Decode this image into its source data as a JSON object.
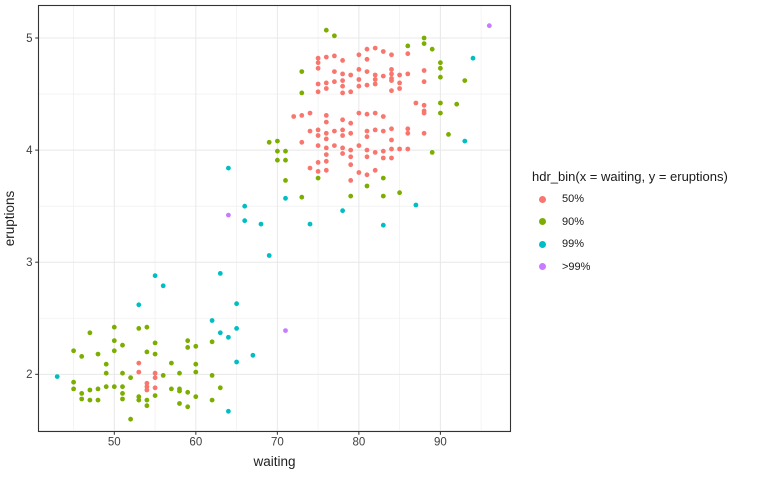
{
  "chart_data": {
    "type": "scatter",
    "title": "",
    "xlabel": "waiting",
    "ylabel": "eruptions",
    "xlim": [
      40.7,
      98.6
    ],
    "ylim": [
      1.49,
      5.29
    ],
    "x_ticks": [
      50,
      60,
      70,
      80,
      90
    ],
    "x_minor_gridlines": [
      45,
      55,
      65,
      75,
      85,
      95
    ],
    "y_ticks": [
      2,
      3,
      4,
      5
    ],
    "y_minor_gridlines": [
      1.5,
      2.5,
      3.5,
      4.5
    ],
    "grid": true,
    "panel_border_color": "#333333",
    "gridline_major_color": "#e8e8e8",
    "gridline_minor_color": "#f1f1f1",
    "legend": {
      "title": "hdr_bin(x = waiting, y = eruptions)",
      "position": "right",
      "items": [
        {
          "label": "50%",
          "color": "#F8766D"
        },
        {
          "label": "90%",
          "color": "#7CAE00"
        },
        {
          "label": "99%",
          "color": "#00BFC4"
        },
        {
          "label": ">99%",
          "color": "#C77CFF"
        }
      ]
    },
    "series": [
      {
        "name": "50%",
        "color": "#F8766D",
        "points": [
          [
            53,
            2.1
          ],
          [
            53,
            2.02
          ],
          [
            55,
            2.01
          ],
          [
            55,
            1.97
          ],
          [
            54,
            1.92
          ],
          [
            55,
            1.88
          ],
          [
            54,
            1.89
          ],
          [
            54,
            1.86
          ],
          [
            75,
            4.82
          ],
          [
            76,
            4.83
          ],
          [
            77,
            4.84
          ],
          [
            78,
            4.8
          ],
          [
            80,
            4.85
          ],
          [
            81,
            4.9
          ],
          [
            81,
            4.81
          ],
          [
            82,
            4.91
          ],
          [
            83,
            4.88
          ],
          [
            84,
            4.85
          ],
          [
            86,
            4.86
          ],
          [
            75,
            4.78
          ],
          [
            75,
            4.73
          ],
          [
            77,
            4.7
          ],
          [
            78,
            4.68
          ],
          [
            79,
            4.67
          ],
          [
            80,
            4.72
          ],
          [
            81,
            4.7
          ],
          [
            82,
            4.67
          ],
          [
            83,
            4.66
          ],
          [
            84,
            4.72
          ],
          [
            84,
            4.68
          ],
          [
            85,
            4.67
          ],
          [
            86,
            4.68
          ],
          [
            88,
            4.71
          ],
          [
            84,
            4.64
          ],
          [
            75,
            4.59
          ],
          [
            75,
            4.52
          ],
          [
            76,
            4.6
          ],
          [
            76,
            4.55
          ],
          [
            77,
            4.61
          ],
          [
            78,
            4.62
          ],
          [
            78,
            4.57
          ],
          [
            78,
            4.51
          ],
          [
            79,
            4.52
          ],
          [
            80,
            4.63
          ],
          [
            80,
            4.57
          ],
          [
            81,
            4.58
          ],
          [
            82,
            4.59
          ],
          [
            82,
            4.63
          ],
          [
            84,
            4.62
          ],
          [
            84,
            4.53
          ],
          [
            85,
            4.6
          ],
          [
            85,
            4.55
          ],
          [
            88,
            4.61
          ],
          [
            87,
            4.42
          ],
          [
            88,
            4.4
          ],
          [
            88,
            4.35
          ],
          [
            72,
            4.3
          ],
          [
            73,
            4.31
          ],
          [
            74,
            4.33
          ],
          [
            76,
            4.31
          ],
          [
            76,
            4.25
          ],
          [
            78,
            4.27
          ],
          [
            79,
            4.24
          ],
          [
            80,
            4.33
          ],
          [
            81,
            4.32
          ],
          [
            82,
            4.33
          ],
          [
            83,
            4.3
          ],
          [
            88,
            4.33
          ],
          [
            74,
            4.17
          ],
          [
            75,
            4.18
          ],
          [
            75,
            4.13
          ],
          [
            76,
            4.15
          ],
          [
            76,
            4.1
          ],
          [
            77,
            4.17
          ],
          [
            78,
            4.18
          ],
          [
            78,
            4.13
          ],
          [
            79,
            4.15
          ],
          [
            81,
            4.17
          ],
          [
            81,
            4.12
          ],
          [
            82,
            4.18
          ],
          [
            83,
            4.17
          ],
          [
            84,
            4.19
          ],
          [
            86,
            4.19
          ],
          [
            86,
            4.15
          ],
          [
            88,
            4.15
          ],
          [
            73,
            4.07
          ],
          [
            75,
            4.04
          ],
          [
            76,
            4.02
          ],
          [
            77,
            4.04
          ],
          [
            78,
            4.02
          ],
          [
            78,
            3.97
          ],
          [
            76,
            3.96
          ],
          [
            76,
            3.9
          ],
          [
            75,
            3.89
          ],
          [
            79,
            4.0
          ],
          [
            79,
            3.94
          ],
          [
            80,
            4.04
          ],
          [
            81,
            4.0
          ],
          [
            81,
            3.94
          ],
          [
            82,
            3.98
          ],
          [
            83,
            3.99
          ],
          [
            84,
            4.09
          ],
          [
            84,
            4.01
          ],
          [
            85,
            4.01
          ],
          [
            83,
            3.93
          ],
          [
            84,
            3.93
          ],
          [
            86,
            4.01
          ],
          [
            74,
            3.84
          ],
          [
            75,
            3.81
          ],
          [
            76,
            3.82
          ],
          [
            80,
            3.8
          ],
          [
            81,
            3.78
          ],
          [
            82,
            3.82
          ],
          [
            79,
            3.73
          ],
          [
            79,
            3.87
          ]
        ]
      },
      {
        "name": "90%",
        "color": "#7CAE00",
        "points": [
          [
            76,
            5.07
          ],
          [
            77,
            5.02
          ],
          [
            88,
            5.0
          ],
          [
            86,
            4.93
          ],
          [
            88,
            4.95
          ],
          [
            89,
            4.9
          ],
          [
            73,
            4.7
          ],
          [
            73,
            4.51
          ],
          [
            90,
            4.78
          ],
          [
            90,
            4.73
          ],
          [
            90,
            4.65
          ],
          [
            93,
            4.62
          ],
          [
            92,
            4.41
          ],
          [
            90,
            4.42
          ],
          [
            90,
            4.33
          ],
          [
            91,
            4.14
          ],
          [
            89,
            3.98
          ],
          [
            85,
            3.62
          ],
          [
            83,
            3.75
          ],
          [
            83,
            3.59
          ],
          [
            81,
            3.68
          ],
          [
            79,
            3.59
          ],
          [
            75,
            3.75
          ],
          [
            73,
            3.58
          ],
          [
            71,
            3.73
          ],
          [
            69,
            4.07
          ],
          [
            70,
            4.08
          ],
          [
            70,
            3.99
          ],
          [
            71,
            3.99
          ],
          [
            70,
            3.91
          ],
          [
            71,
            3.91
          ],
          [
            47,
            2.37
          ],
          [
            50,
            2.42
          ],
          [
            53,
            2.41
          ],
          [
            54,
            2.42
          ],
          [
            45,
            2.21
          ],
          [
            46,
            2.16
          ],
          [
            48,
            2.18
          ],
          [
            50,
            2.3
          ],
          [
            50,
            2.21
          ],
          [
            51,
            2.26
          ],
          [
            54,
            2.2
          ],
          [
            55,
            2.28
          ],
          [
            55,
            2.18
          ],
          [
            57,
            2.1
          ],
          [
            49,
            2.09
          ],
          [
            49,
            2.01
          ],
          [
            51,
            2.01
          ],
          [
            52,
            1.97
          ],
          [
            45,
            1.93
          ],
          [
            45,
            1.87
          ],
          [
            46,
            1.83
          ],
          [
            46,
            1.78
          ],
          [
            47,
            1.86
          ],
          [
            47,
            1.77
          ],
          [
            48,
            1.87
          ],
          [
            48,
            1.77
          ],
          [
            49,
            1.89
          ],
          [
            50,
            1.89
          ],
          [
            51,
            1.89
          ],
          [
            51,
            1.83
          ],
          [
            51,
            1.78
          ],
          [
            53,
            1.8
          ],
          [
            53,
            1.77
          ],
          [
            54,
            1.77
          ],
          [
            54,
            1.72
          ],
          [
            55,
            1.81
          ],
          [
            56,
            1.99
          ],
          [
            57,
            1.87
          ],
          [
            58,
            1.85
          ],
          [
            58,
            1.74
          ],
          [
            52,
            1.6
          ],
          [
            58,
            2.01
          ],
          [
            59,
            2.3
          ],
          [
            59,
            2.24
          ],
          [
            60,
            2.25
          ],
          [
            62,
            2.29
          ],
          [
            60,
            2.09
          ],
          [
            60,
            2.02
          ],
          [
            62,
            1.99
          ],
          [
            59,
            1.84
          ],
          [
            60,
            1.8
          ],
          [
            63,
            1.88
          ],
          [
            62,
            1.77
          ],
          [
            59,
            1.71
          ],
          [
            58,
            1.87
          ]
        ]
      },
      {
        "name": "99%",
        "color": "#00BFC4",
        "points": [
          [
            94,
            4.82
          ],
          [
            93,
            4.08
          ],
          [
            87,
            3.51
          ],
          [
            83,
            3.33
          ],
          [
            78,
            3.46
          ],
          [
            74,
            3.34
          ],
          [
            71,
            3.57
          ],
          [
            69,
            3.06
          ],
          [
            68,
            3.34
          ],
          [
            66,
            3.5
          ],
          [
            66,
            3.37
          ],
          [
            64,
            3.84
          ],
          [
            63,
            2.9
          ],
          [
            55,
            2.88
          ],
          [
            56,
            2.79
          ],
          [
            65,
            2.63
          ],
          [
            62,
            2.48
          ],
          [
            63,
            2.37
          ],
          [
            64,
            2.33
          ],
          [
            65,
            2.41
          ],
          [
            67,
            2.17
          ],
          [
            65,
            2.11
          ],
          [
            64,
            1.67
          ],
          [
            53,
            2.62
          ],
          [
            43,
            1.98
          ]
        ]
      },
      {
        "name": ">99%",
        "color": "#C77CFF",
        "points": [
          [
            96,
            5.11
          ],
          [
            64,
            3.42
          ],
          [
            71,
            2.39
          ]
        ]
      }
    ]
  }
}
